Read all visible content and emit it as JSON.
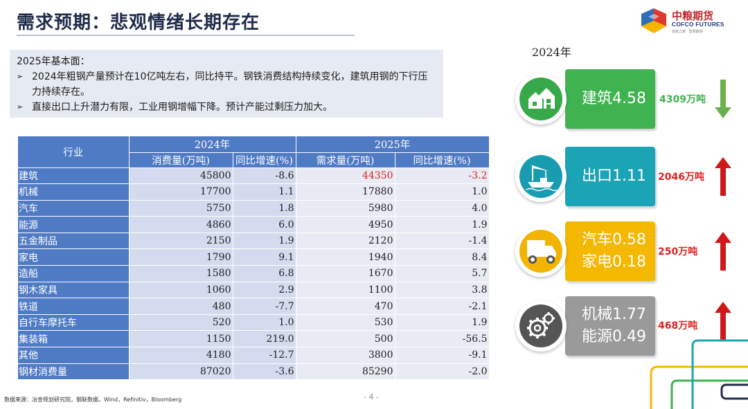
{
  "title": "需求预期：悲观情绪长期存在",
  "logo": {
    "cn": "中粮期货",
    "en": "COFCO FUTURES",
    "sub": "自有之家 · 智慧期货"
  },
  "summary": {
    "heading": "2025年基本面：",
    "bullets": [
      "2024年粗钢产量预计在10亿吨左右，同比持平。钢铁消费结构持续变化，建筑用钢的下行压力持续存在。",
      "直接出口上升潜力有限，工业用钢增幅下降。预计产能过剩压力加大。"
    ]
  },
  "table": {
    "col_industry": "行业",
    "year_a": "2024年",
    "year_b": "2025年",
    "sub_a1": "消费量(万吨)",
    "sub_a2": "同比增速(%)",
    "sub_b1": "需求量(万吨)",
    "sub_b2": "同比增速(%)",
    "rows": [
      {
        "name": "建筑",
        "v2024": "45800",
        "g2024": "-8.6",
        "v2025": "44350",
        "g2025": "-3.2"
      },
      {
        "name": "机械",
        "v2024": "17700",
        "g2024": "1.1",
        "v2025": "17880",
        "g2025": "1.0"
      },
      {
        "name": "汽车",
        "v2024": "5750",
        "g2024": "1.8",
        "v2025": "5980",
        "g2025": "4.0"
      },
      {
        "name": "能源",
        "v2024": "4860",
        "g2024": "6.0",
        "v2025": "4950",
        "g2025": "1.9"
      },
      {
        "name": "五金制品",
        "v2024": "2150",
        "g2024": "1.9",
        "v2025": "2120",
        "g2025": "-1.4"
      },
      {
        "name": "家电",
        "v2024": "1790",
        "g2024": "9.1",
        "v2025": "1940",
        "g2025": "8.4"
      },
      {
        "name": "造船",
        "v2024": "1580",
        "g2024": "6.8",
        "v2025": "1670",
        "g2025": "5.7"
      },
      {
        "name": "钢木家具",
        "v2024": "1060",
        "g2024": "2.9",
        "v2025": "1100",
        "g2025": "3.8"
      },
      {
        "name": "铁道",
        "v2024": "480",
        "g2024": "-7.7",
        "v2025": "470",
        "g2025": "-2.1"
      },
      {
        "name": "自行车摩托车",
        "v2024": "520",
        "g2024": "1.0",
        "v2025": "530",
        "g2025": "1.9"
      },
      {
        "name": "集装箱",
        "v2024": "1150",
        "g2024": "219.0",
        "v2025": "500",
        "g2025": "-56.5"
      },
      {
        "name": "其他",
        "v2024": "4180",
        "g2024": "-12.7",
        "v2025": "3800",
        "g2025": "-9.1"
      },
      {
        "name": "钢材消费量",
        "v2024": "87020",
        "g2024": "-3.6",
        "v2025": "85290",
        "g2025": "-2.0"
      }
    ]
  },
  "source": "数据来源：冶金规划研究院，钢联数据，Wind，Refinitiv，Bloomberg",
  "page": "- 4 -",
  "side": {
    "year": "2024年",
    "cards": [
      {
        "lines": [
          "建筑4.58"
        ],
        "amount": "4309万吨",
        "trend": "down",
        "color": "#3fb34f",
        "circle": "#37a94a",
        "amount_color": "#3fb34f",
        "arrow_color": "#6ab04c",
        "icon": "house-icon"
      },
      {
        "lines": [
          "出口1.11"
        ],
        "amount": "2046万吨",
        "trend": "up",
        "color": "#1ba3b6",
        "circle": "#1a9cb0",
        "amount_color": "#e02020",
        "arrow_color": "#d01818",
        "icon": "crane-ship-icon"
      },
      {
        "lines": [
          "汽车0.58",
          "家电0.18"
        ],
        "amount": "250万吨",
        "trend": "up",
        "color": "#f4b800",
        "circle": "#f2b400",
        "amount_color": "#e02020",
        "arrow_color": "#d01818",
        "icon": "truck-icon"
      },
      {
        "lines": [
          "机械1.77",
          "能源0.49"
        ],
        "amount": "468万吨",
        "trend": "up",
        "color": "#9a9a9a",
        "circle": "#555555",
        "amount_color": "#e02020",
        "arrow_color": "#d01818",
        "icon": "gears-icon"
      }
    ]
  }
}
